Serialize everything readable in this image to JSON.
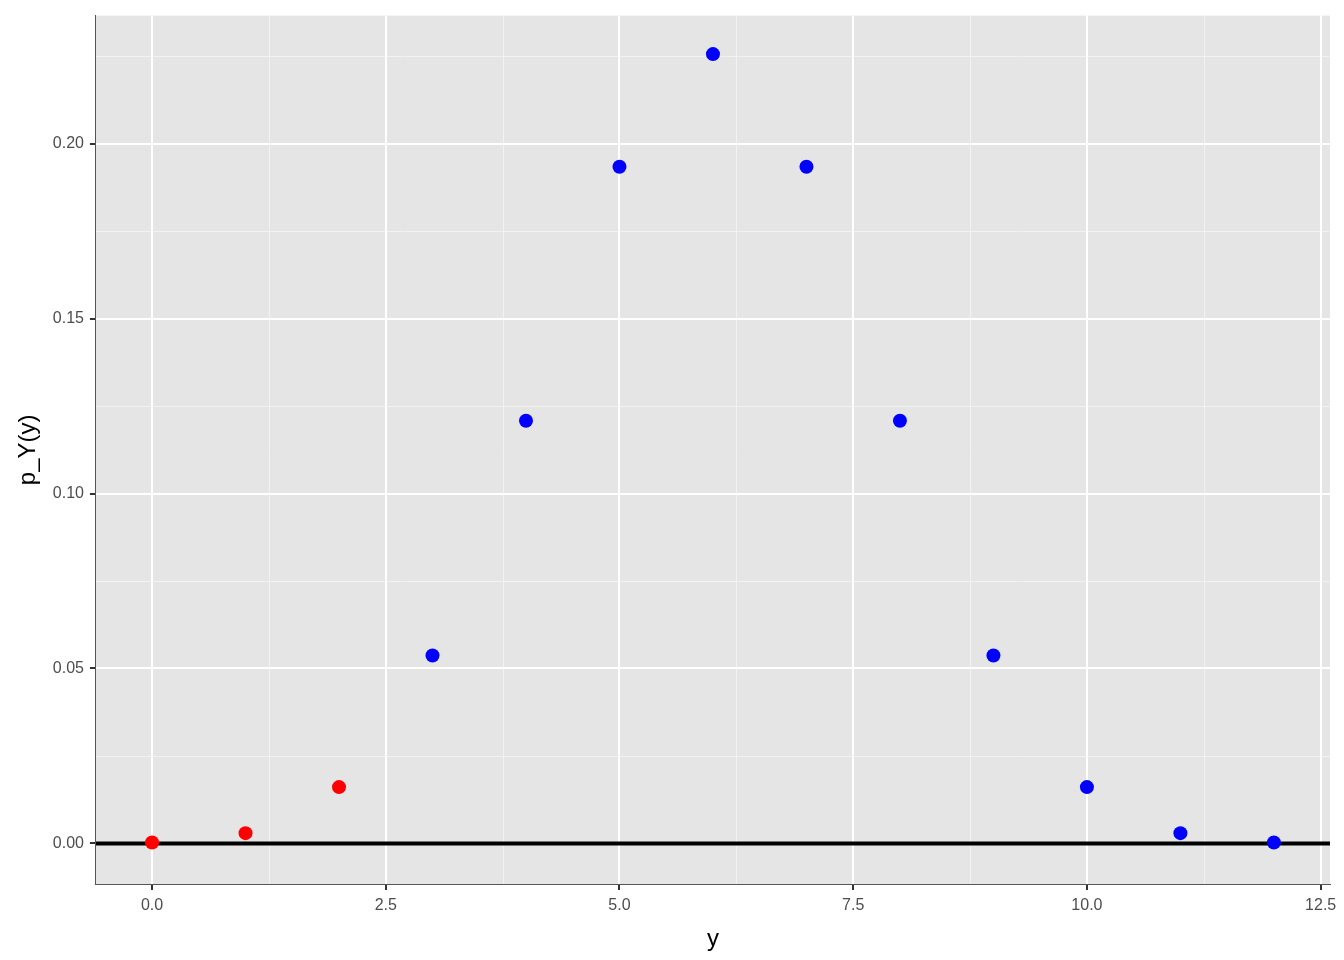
{
  "chart_data": {
    "type": "scatter",
    "x_label": "y",
    "y_label": "p_Y(y)",
    "x": [
      0,
      1,
      2,
      3,
      4,
      5,
      6,
      7,
      8,
      9,
      10,
      11,
      12
    ],
    "values": [
      0.000244,
      0.00293,
      0.0161,
      0.0537,
      0.1208,
      0.1934,
      0.2256,
      0.1934,
      0.1208,
      0.0537,
      0.0161,
      0.00293,
      0.000244
    ],
    "colors": [
      "#ff0000",
      "#ff0000",
      "#ff0000",
      "#0000ff",
      "#0000ff",
      "#0000ff",
      "#0000ff",
      "#0000ff",
      "#0000ff",
      "#0000ff",
      "#0000ff",
      "#0000ff",
      "#0000ff"
    ],
    "marker": "circle",
    "hline": 0,
    "xlim": [
      -0.6,
      12.6
    ],
    "xticks": [
      {
        "value": 0,
        "label": "0.0"
      },
      2.5,
      {
        "value": 5,
        "label": "5.0"
      },
      7.5,
      {
        "value": 10,
        "label": "10.0"
      },
      12.5
    ],
    "ylim": [
      -0.0116,
      0.2366
    ],
    "yticks": [
      {
        "value": 0,
        "label": "0.00"
      },
      {
        "value": 0.05,
        "label": "0.05"
      },
      {
        "value": 0.1,
        "label": "0.10"
      },
      {
        "value": 0.15,
        "label": "0.15"
      },
      {
        "value": 0.2,
        "label": "0.20"
      }
    ],
    "grid": true
  }
}
